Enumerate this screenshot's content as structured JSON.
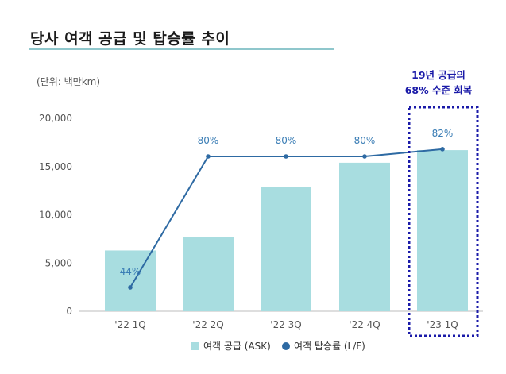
{
  "title": "당사 여객 공급 및 탑승률 추이",
  "colors": {
    "bar": "#a8dde0",
    "line": "#2e6aa3",
    "label": "#3a7db5",
    "annotation": "#1a1aa8",
    "title_rule": "#8fc7cc"
  },
  "chart_data": {
    "type": "bar",
    "unit_label": "(단위: 백만km)",
    "categories": [
      "'22 1Q",
      "'22 2Q",
      "'22 3Q",
      "'22 4Q",
      "'23 1Q"
    ],
    "yticks": [
      "0",
      "5,000",
      "10,000",
      "15,000",
      "20,000"
    ],
    "ylim": [
      0,
      20000
    ],
    "series": [
      {
        "name": "여객 공급 (ASK)",
        "type": "bar",
        "values": [
          6300,
          7700,
          12900,
          15400,
          16700
        ]
      },
      {
        "name": "여객 탑승률 (L/F)",
        "type": "line",
        "values": [
          44,
          80,
          80,
          80,
          82
        ],
        "labels": [
          "44%",
          "80%",
          "80%",
          "80%",
          "82%"
        ]
      }
    ],
    "annotation": [
      "19년 공급의",
      "68% 수준 회복"
    ],
    "legend_position": "bottom"
  }
}
